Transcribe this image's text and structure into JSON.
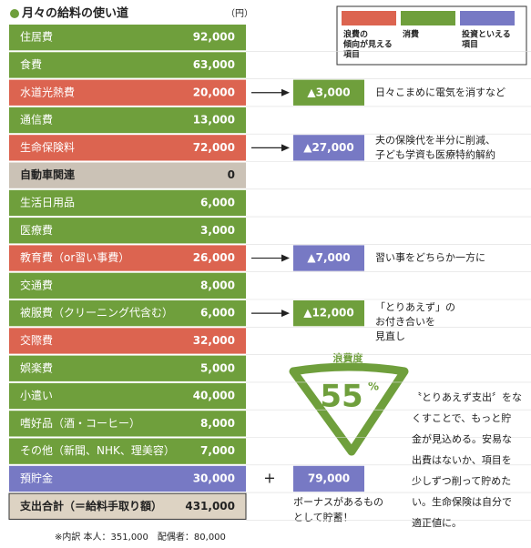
{
  "header": {
    "title": "月々の給料の使い道",
    "unit": "（円）"
  },
  "legend": [
    {
      "label": [
        "浪費の",
        "傾向が見える",
        "項目"
      ],
      "color": "#dc6450"
    },
    {
      "label": [
        "消費"
      ],
      "color": "#6f9f3c"
    },
    {
      "label": [
        "投資といえる",
        "項目"
      ],
      "color": "#7779c4"
    }
  ],
  "rows": [
    {
      "label": "住居費",
      "amount": "92,000",
      "color": "#6f9f3c"
    },
    {
      "label": "食費",
      "amount": "63,000",
      "color": "#6f9f3c"
    },
    {
      "label": "水道光熱費",
      "amount": "20,000",
      "color": "#dc6450",
      "change": {
        "amount": "▲3,000",
        "color": "#6f9f3c",
        "note": [
          "日々こまめに電気を消すなど"
        ]
      }
    },
    {
      "label": "通信費",
      "amount": "13,000",
      "color": "#6f9f3c"
    },
    {
      "label": "生命保険料",
      "amount": "72,000",
      "color": "#dc6450",
      "change": {
        "amount": "▲27,000",
        "color": "#7779c4",
        "note": [
          "夫の保険代を半分に削減、",
          "子ども学資も医療特約解約"
        ]
      }
    },
    {
      "label": "自動車関連",
      "amount": "0",
      "color": "#cbc2b6"
    },
    {
      "label": "生活日用品",
      "amount": "6,000",
      "color": "#6f9f3c"
    },
    {
      "label": "医療費",
      "amount": "3,000",
      "color": "#6f9f3c"
    },
    {
      "label": "教育費（or習い事費）",
      "amount": "26,000",
      "color": "#dc6450",
      "change": {
        "amount": "▲7,000",
        "color": "#7779c4",
        "note": [
          "習い事をどちらか一方に"
        ]
      }
    },
    {
      "label": "交通費",
      "amount": "8,000",
      "color": "#6f9f3c"
    },
    {
      "label": "被服費（クリーニング代含む）",
      "amount": "6,000",
      "color": "#6f9f3c",
      "change": {
        "amount": "▲12,000",
        "color": "#6f9f3c",
        "note": [
          "「とりあえず」の",
          "お付き合いを",
          "見直し"
        ]
      }
    },
    {
      "label": "交際費",
      "amount": "32,000",
      "color": "#dc6450"
    },
    {
      "label": "娯楽費",
      "amount": "5,000",
      "color": "#6f9f3c"
    },
    {
      "label": "小遣い",
      "amount": "40,000",
      "color": "#6f9f3c"
    },
    {
      "label": "嗜好品（酒・コーヒー）",
      "amount": "8,000",
      "color": "#6f9f3c"
    },
    {
      "label": "その他（新聞、NHK、理美容）",
      "amount": "7,000",
      "color": "#6f9f3c"
    },
    {
      "label": "預貯金",
      "amount": "30,000",
      "color": "#7779c4",
      "change": {
        "sign": "+",
        "amount": "79,000",
        "color": "#7779c4",
        "note": [
          "ボーナスがあるもの",
          "として貯蓄！"
        ]
      }
    },
    {
      "label": "支出合計（＝給料手取り額）",
      "amount": "431,000",
      "color": "#ddd3c3"
    }
  ],
  "footnote": "※内訳 本人：351,000　配偶者：80,000",
  "gauge": {
    "title": "浪費度",
    "value": "55",
    "unit": "%"
  },
  "comment": [
    "〝とりあえず支出〞をな",
    "くすことで、もっと貯",
    "金が見込める。安易な",
    "出費はないか、項目を",
    "少しずつ削って貯めた",
    "い。生命保険は自分で",
    "適正値に。"
  ]
}
